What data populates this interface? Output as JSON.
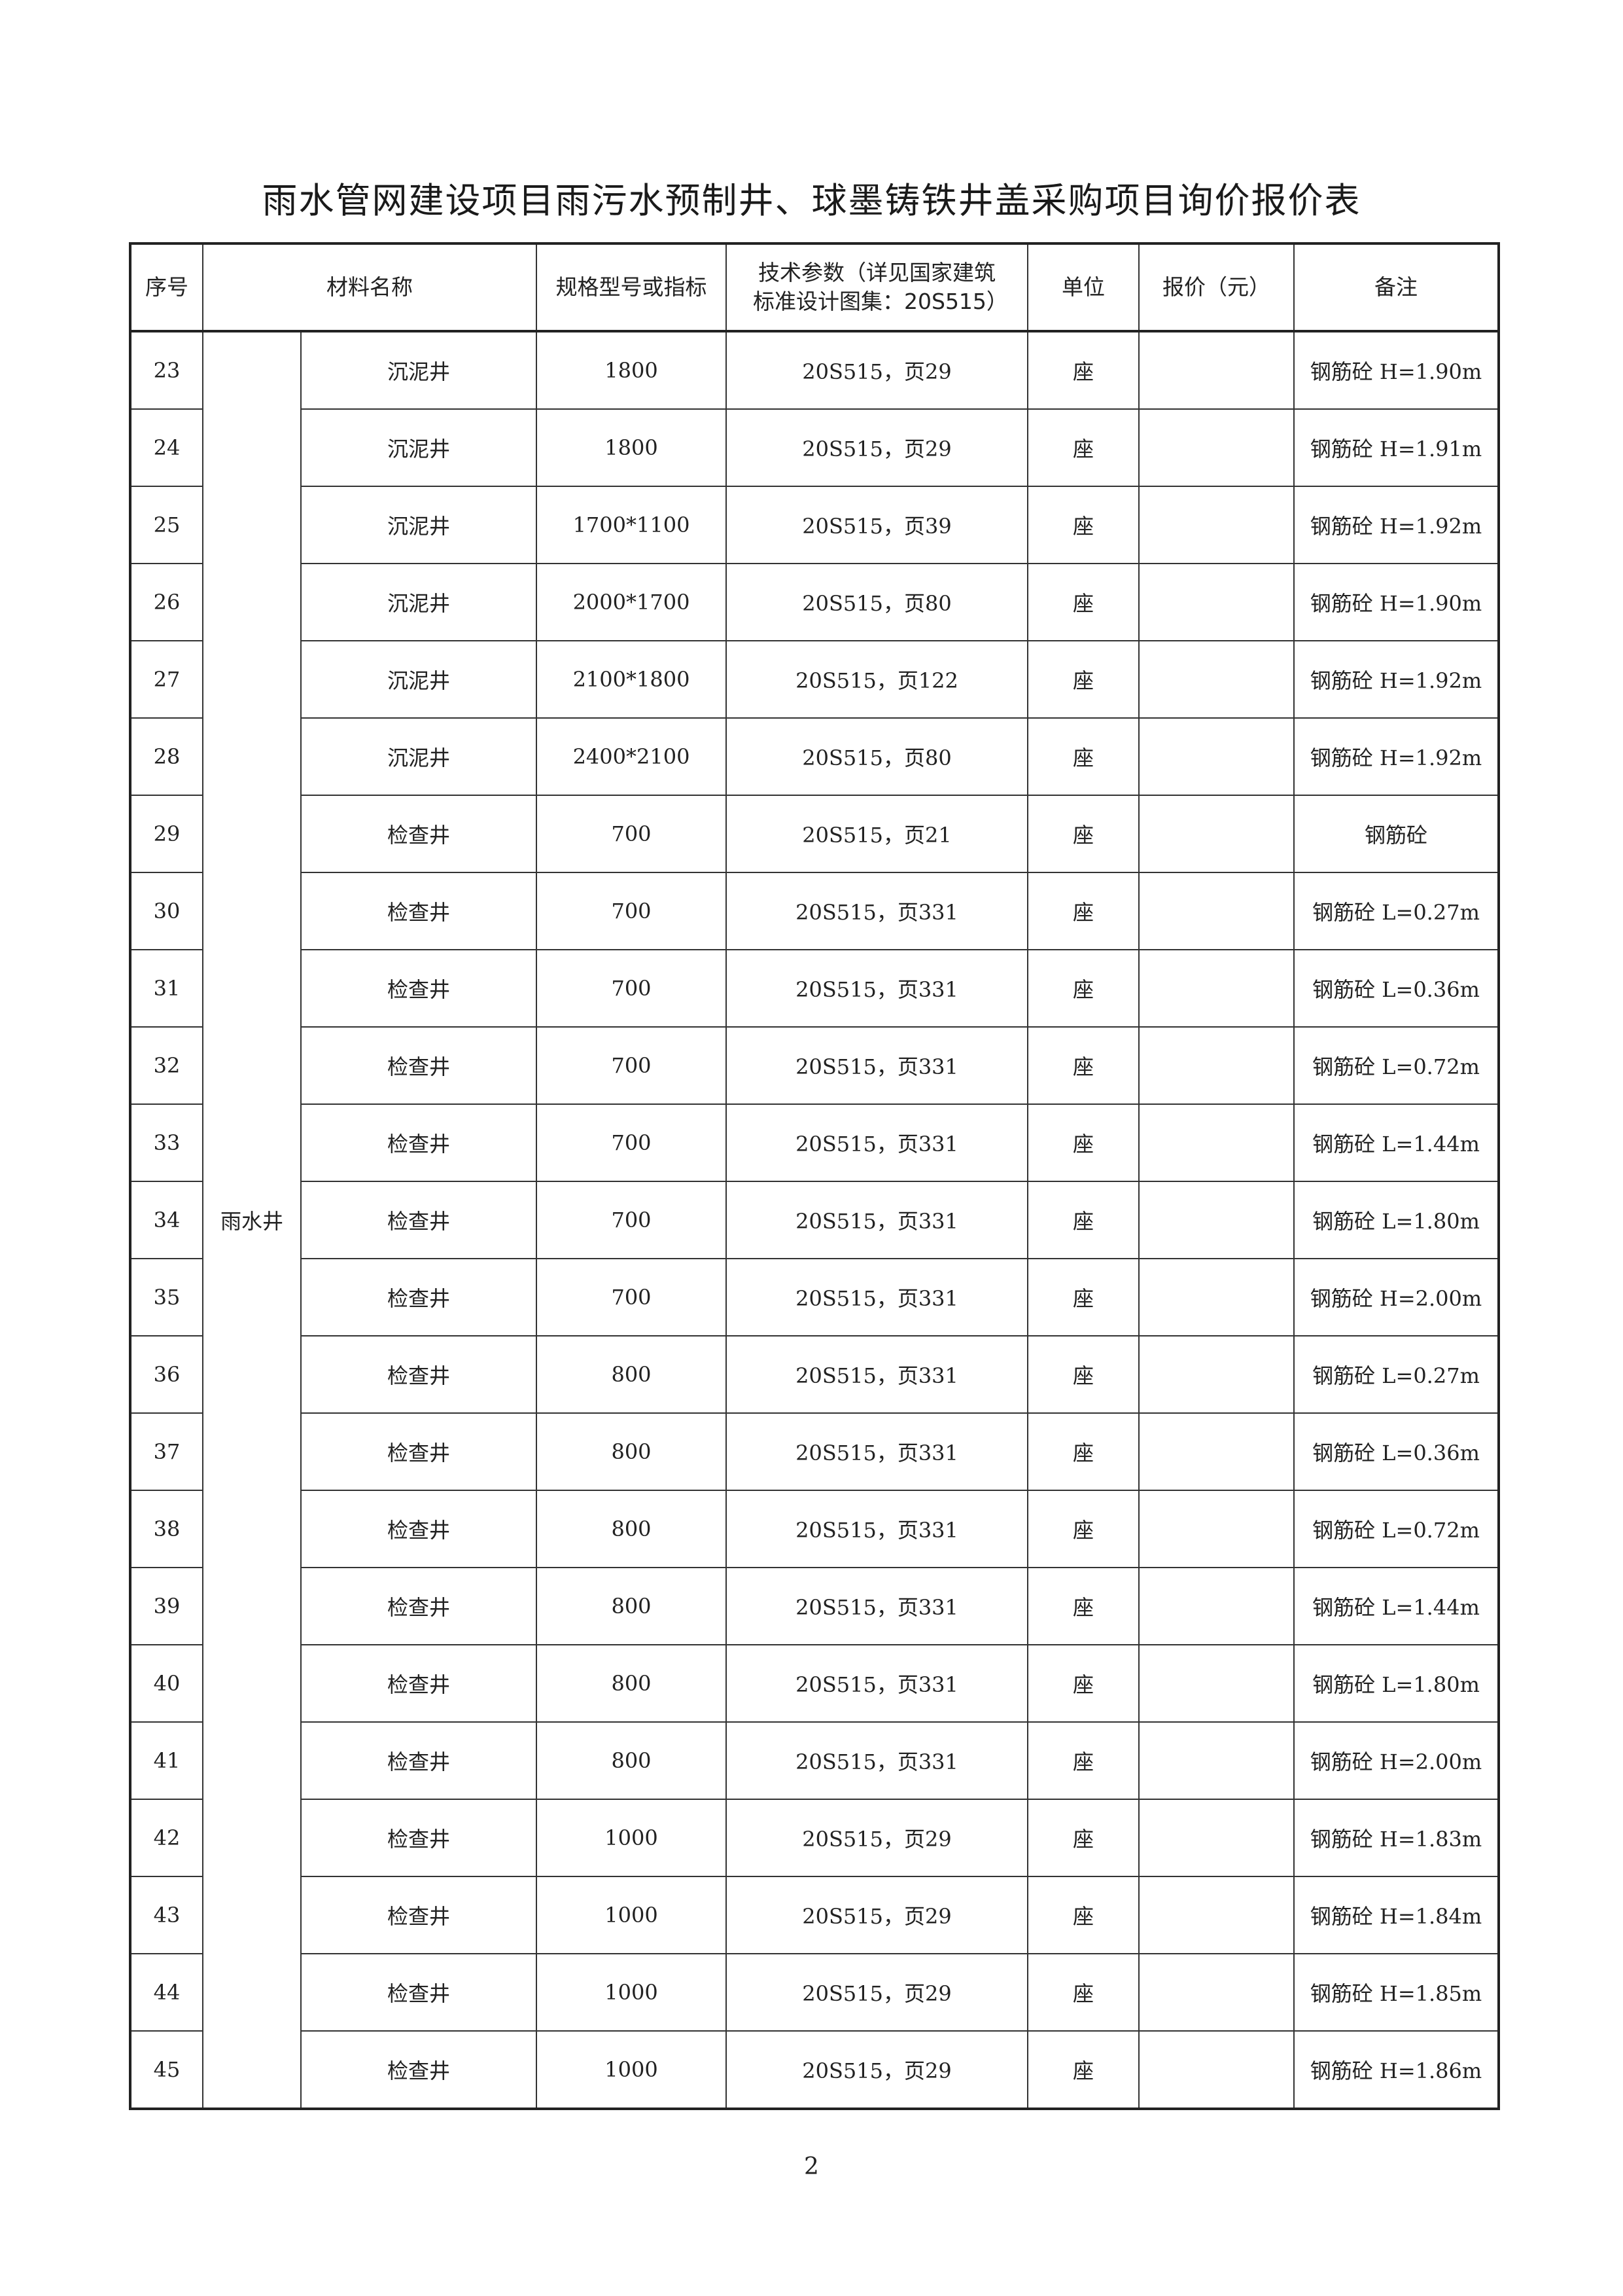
{
  "title": "雨水管网建设项目雨污水预制井、球墨铸铁井盖采购项目询价报价表",
  "headers": {
    "seq": "序号",
    "material": "材料名称",
    "spec": "规格型号或指标",
    "tech": "技术参数（详见国家建筑标准设计图集：20S515）",
    "unit": "单位",
    "price": "报价（元）",
    "remark": "备注"
  },
  "group_label": "雨水井",
  "rows": [
    {
      "no": "23",
      "name": "沉泥井",
      "spec": "1800",
      "tech": "20S515，页29",
      "unit": "座",
      "price": "",
      "remark": "钢筋砼 H=1.90m"
    },
    {
      "no": "24",
      "name": "沉泥井",
      "spec": "1800",
      "tech": "20S515，页29",
      "unit": "座",
      "price": "",
      "remark": "钢筋砼 H=1.91m"
    },
    {
      "no": "25",
      "name": "沉泥井",
      "spec": "1700*1100",
      "tech": "20S515，页39",
      "unit": "座",
      "price": "",
      "remark": "钢筋砼 H=1.92m"
    },
    {
      "no": "26",
      "name": "沉泥井",
      "spec": "2000*1700",
      "tech": "20S515，页80",
      "unit": "座",
      "price": "",
      "remark": "钢筋砼 H=1.90m"
    },
    {
      "no": "27",
      "name": "沉泥井",
      "spec": "2100*1800",
      "tech": "20S515，页122",
      "unit": "座",
      "price": "",
      "remark": "钢筋砼 H=1.92m"
    },
    {
      "no": "28",
      "name": "沉泥井",
      "spec": "2400*2100",
      "tech": "20S515，页80",
      "unit": "座",
      "price": "",
      "remark": "钢筋砼 H=1.92m"
    },
    {
      "no": "29",
      "name": "检查井",
      "spec": "700",
      "tech": "20S515，页21",
      "unit": "座",
      "price": "",
      "remark": "钢筋砼"
    },
    {
      "no": "30",
      "name": "检查井",
      "spec": "700",
      "tech": "20S515，页331",
      "unit": "座",
      "price": "",
      "remark": "钢筋砼 L=0.27m"
    },
    {
      "no": "31",
      "name": "检查井",
      "spec": "700",
      "tech": "20S515，页331",
      "unit": "座",
      "price": "",
      "remark": "钢筋砼 L=0.36m"
    },
    {
      "no": "32",
      "name": "检查井",
      "spec": "700",
      "tech": "20S515，页331",
      "unit": "座",
      "price": "",
      "remark": "钢筋砼 L=0.72m"
    },
    {
      "no": "33",
      "name": "检查井",
      "spec": "700",
      "tech": "20S515，页331",
      "unit": "座",
      "price": "",
      "remark": "钢筋砼 L=1.44m"
    },
    {
      "no": "34",
      "name": "检查井",
      "spec": "700",
      "tech": "20S515，页331",
      "unit": "座",
      "price": "",
      "remark": "钢筋砼 L=1.80m"
    },
    {
      "no": "35",
      "name": "检查井",
      "spec": "700",
      "tech": "20S515，页331",
      "unit": "座",
      "price": "",
      "remark": "钢筋砼 H=2.00m"
    },
    {
      "no": "36",
      "name": "检查井",
      "spec": "800",
      "tech": "20S515，页331",
      "unit": "座",
      "price": "",
      "remark": "钢筋砼 L=0.27m"
    },
    {
      "no": "37",
      "name": "检查井",
      "spec": "800",
      "tech": "20S515，页331",
      "unit": "座",
      "price": "",
      "remark": "钢筋砼 L=0.36m"
    },
    {
      "no": "38",
      "name": "检查井",
      "spec": "800",
      "tech": "20S515，页331",
      "unit": "座",
      "price": "",
      "remark": "钢筋砼 L=0.72m"
    },
    {
      "no": "39",
      "name": "检查井",
      "spec": "800",
      "tech": "20S515，页331",
      "unit": "座",
      "price": "",
      "remark": "钢筋砼 L=1.44m"
    },
    {
      "no": "40",
      "name": "检查井",
      "spec": "800",
      "tech": "20S515，页331",
      "unit": "座",
      "price": "",
      "remark": "钢筋砼 L=1.80m"
    },
    {
      "no": "41",
      "name": "检查井",
      "spec": "800",
      "tech": "20S515，页331",
      "unit": "座",
      "price": "",
      "remark": "钢筋砼 H=2.00m"
    },
    {
      "no": "42",
      "name": "检查井",
      "spec": "1000",
      "tech": "20S515，页29",
      "unit": "座",
      "price": "",
      "remark": "钢筋砼 H=1.83m"
    },
    {
      "no": "43",
      "name": "检查井",
      "spec": "1000",
      "tech": "20S515，页29",
      "unit": "座",
      "price": "",
      "remark": "钢筋砼 H=1.84m"
    },
    {
      "no": "44",
      "name": "检查井",
      "spec": "1000",
      "tech": "20S515，页29",
      "unit": "座",
      "price": "",
      "remark": "钢筋砼 H=1.85m"
    },
    {
      "no": "45",
      "name": "检查井",
      "spec": "1000",
      "tech": "20S515，页29",
      "unit": "座",
      "price": "",
      "remark": "钢筋砼 H=1.86m"
    }
  ],
  "page_number": "2"
}
